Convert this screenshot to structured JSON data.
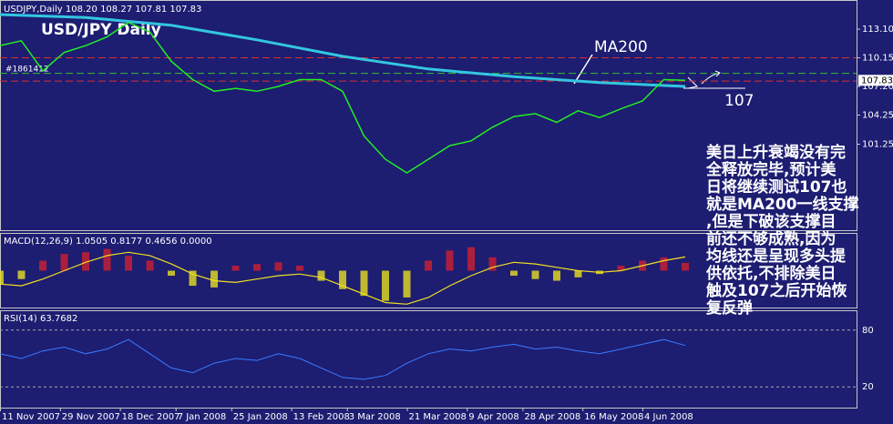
{
  "chart_data": {
    "type": "line",
    "header": "USDJPY,Daily  108.20 108.27 107.81 107.83",
    "title": "USD/JPY Daily",
    "tag": "#1861412",
    "x": [
      0,
      5,
      10,
      15,
      20,
      25,
      30,
      35,
      40,
      45,
      50,
      55,
      60,
      65,
      70,
      75,
      80,
      85,
      90,
      95,
      100,
      105,
      110,
      115,
      120,
      125,
      130,
      135,
      140,
      145,
      150,
      155,
      160
    ],
    "xlim": [
      0,
      200
    ],
    "xticks": [
      {
        "value": 0,
        "label": "11 Nov 2007"
      },
      {
        "value": 14,
        "label": "29 Nov 2007"
      },
      {
        "value": 28,
        "label": "18 Dec 2007"
      },
      {
        "value": 41,
        "label": "7 Jan 2008"
      },
      {
        "value": 54,
        "label": "25 Jan 2008"
      },
      {
        "value": 68,
        "label": "13 Feb 2008"
      },
      {
        "value": 81,
        "label": "3 Mar 2008"
      },
      {
        "value": 95,
        "label": "21 Mar 2008"
      },
      {
        "value": 109,
        "label": "9 Apr 2008"
      },
      {
        "value": 122,
        "label": "28 Apr 2008"
      },
      {
        "value": 136,
        "label": "16 May 2008"
      },
      {
        "value": 150,
        "label": "4 Jun 2008"
      }
    ],
    "price": {
      "color": "#22ee22",
      "values": [
        111.4,
        111.9,
        108.8,
        110.7,
        111.4,
        112.3,
        113.8,
        112.8,
        109.8,
        107.9,
        106.7,
        107.0,
        106.7,
        107.2,
        107.9,
        107.9,
        106.7,
        102.1,
        99.7,
        98.3,
        99.7,
        101.1,
        101.6,
        103.0,
        104.1,
        104.4,
        103.5,
        104.7,
        104.0,
        104.9,
        105.7,
        107.9,
        107.83
      ],
      "ylim": [
        92.4,
        116.1
      ],
      "yticks": [
        {
          "value": 113.1,
          "label": "113.10"
        },
        110.15,
        {
          "value": 107.2,
          "label": "107.20"
        },
        104.25,
        101.25
      ],
      "last": 107.83,
      "hlines": [
        {
          "value": 110.15,
          "color": "#d83030"
        },
        {
          "value": 108.55,
          "color": "#30c030"
        },
        {
          "value": 107.75,
          "color": "#d83030"
        }
      ],
      "ma": {
        "name": "MA200",
        "color": "#33c6e0",
        "x": [
          0,
          20,
          40,
          60,
          80,
          100,
          120,
          140,
          160
        ],
        "values": [
          114.6,
          114.3,
          113.5,
          112.0,
          110.3,
          109.0,
          108.2,
          107.6,
          107.2
        ]
      }
    },
    "macd": {
      "label": "MACD(12,26,9) 1.0505 0.8177 0.4656 0.0000",
      "ylim": [
        -2.2,
        2.2
      ],
      "up_color": "#d02030",
      "down_color": "#e8e020",
      "histogram": [
        -0.8,
        -0.5,
        0.6,
        1.0,
        1.1,
        1.3,
        0.9,
        0.6,
        -0.3,
        -0.9,
        -1.0,
        0.3,
        0.4,
        0.5,
        0.3,
        -0.6,
        -1.1,
        -1.5,
        -1.8,
        -1.6,
        0.6,
        1.2,
        1.4,
        0.8,
        -0.3,
        -0.5,
        -0.6,
        -0.4,
        -0.2,
        0.3,
        0.6,
        0.8,
        0.47
      ],
      "signal": {
        "color": "#f0e020",
        "values": [
          -0.8,
          -0.9,
          -0.5,
          0,
          0.5,
          0.9,
          1.1,
          0.9,
          0.4,
          -0.2,
          -0.6,
          -0.7,
          -0.5,
          -0.3,
          -0.2,
          -0.4,
          -0.9,
          -1.4,
          -1.9,
          -2.0,
          -1.6,
          -0.9,
          -0.3,
          0.2,
          0.5,
          0.4,
          0.2,
          0,
          -0.1,
          0,
          0.3,
          0.6,
          0.82
        ]
      }
    },
    "rsi": {
      "label": "RSI(14) 63.7682",
      "ylim": [
        -1.9,
        100
      ],
      "yticks": [
        80,
        20
      ],
      "color": "#3a7cff",
      "values": [
        55,
        50,
        58,
        62,
        55,
        60,
        70,
        55,
        40,
        35,
        45,
        50,
        48,
        55,
        50,
        40,
        30,
        28,
        32,
        45,
        55,
        60,
        58,
        62,
        65,
        60,
        62,
        58,
        55,
        60,
        65,
        70,
        63.7682
      ]
    },
    "annotations": {
      "level": "107",
      "comment": [
        "美日上升衰竭没有完",
        "全释放完毕,预计美",
        "日将继续测试107也",
        "就是MA200一线支撑",
        ",但是下破该支撑目",
        "前还不够成熟,因为",
        "均线还是呈现多头提",
        "供依托,不排除美日",
        "触及107之后开始恢",
        "复反弹"
      ]
    }
  }
}
